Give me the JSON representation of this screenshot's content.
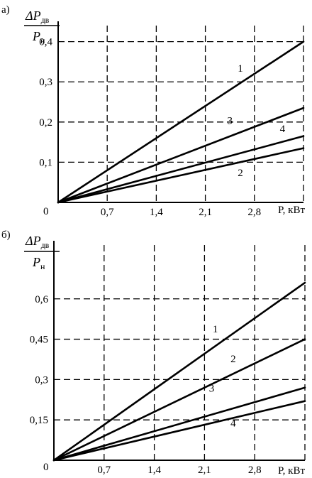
{
  "chart_data": [
    {
      "type": "line",
      "panel_label": "а)",
      "ylabel": {
        "delta": "Δ",
        "P_top": "P",
        "top_sub": "дв",
        "P_bottom": "P",
        "bottom_sub": "н"
      },
      "xlabel": "P, кВт",
      "origin_label": "0",
      "x_ticks": [
        "0,7",
        "1,4",
        "2,1",
        "2,8"
      ],
      "y_ticks": [
        "0,1",
        "0,2",
        "0,3",
        "0,4"
      ],
      "x_tick_values": [
        0.7,
        1.4,
        2.1,
        2.8
      ],
      "y_tick_values": [
        0.1,
        0.2,
        0.3,
        0.4
      ],
      "xlim": [
        0,
        3.5
      ],
      "ylim": [
        0,
        0.44
      ],
      "grid": true,
      "series": [
        {
          "label": "1",
          "x": [
            0,
            3.5
          ],
          "y": [
            0,
            0.4
          ],
          "label_at": [
            2.6,
            0.325
          ]
        },
        {
          "label": "3",
          "x": [
            0,
            3.5
          ],
          "y": [
            0,
            0.235
          ],
          "label_at": [
            2.45,
            0.195
          ]
        },
        {
          "label": "4",
          "x": [
            0,
            3.5
          ],
          "y": [
            0,
            0.165
          ],
          "label_at": [
            3.2,
            0.175
          ]
        },
        {
          "label": "2",
          "x": [
            0,
            3.5
          ],
          "y": [
            0,
            0.135
          ],
          "label_at": [
            2.6,
            0.065
          ]
        }
      ]
    },
    {
      "type": "line",
      "panel_label": "б)",
      "ylabel": {
        "delta": "Δ",
        "P_top": "P",
        "top_sub": "дв",
        "P_bottom": "P",
        "bottom_sub": "н"
      },
      "xlabel": "P, кВт",
      "origin_label": "0",
      "x_ticks": [
        "0,7",
        "1,4",
        "2,1",
        "2,8"
      ],
      "y_ticks": [
        "0,15",
        "0,3",
        "0,45",
        "0,6"
      ],
      "x_tick_values": [
        0.7,
        1.4,
        2.1,
        2.8
      ],
      "y_tick_values": [
        0.15,
        0.3,
        0.45,
        0.6
      ],
      "xlim": [
        0,
        3.5
      ],
      "ylim": [
        0,
        0.8
      ],
      "grid": true,
      "series": [
        {
          "label": "1",
          "x": [
            0,
            3.5
          ],
          "y": [
            0,
            0.66
          ],
          "label_at": [
            2.25,
            0.475
          ]
        },
        {
          "label": "2",
          "x": [
            0,
            3.5
          ],
          "y": [
            0,
            0.45
          ],
          "label_at": [
            2.5,
            0.365
          ]
        },
        {
          "label": "3",
          "x": [
            0,
            3.5
          ],
          "y": [
            0,
            0.27
          ],
          "label_at": [
            2.2,
            0.255
          ]
        },
        {
          "label": "4",
          "x": [
            0,
            3.5
          ],
          "y": [
            0,
            0.22
          ],
          "label_at": [
            2.5,
            0.125
          ]
        }
      ]
    }
  ]
}
